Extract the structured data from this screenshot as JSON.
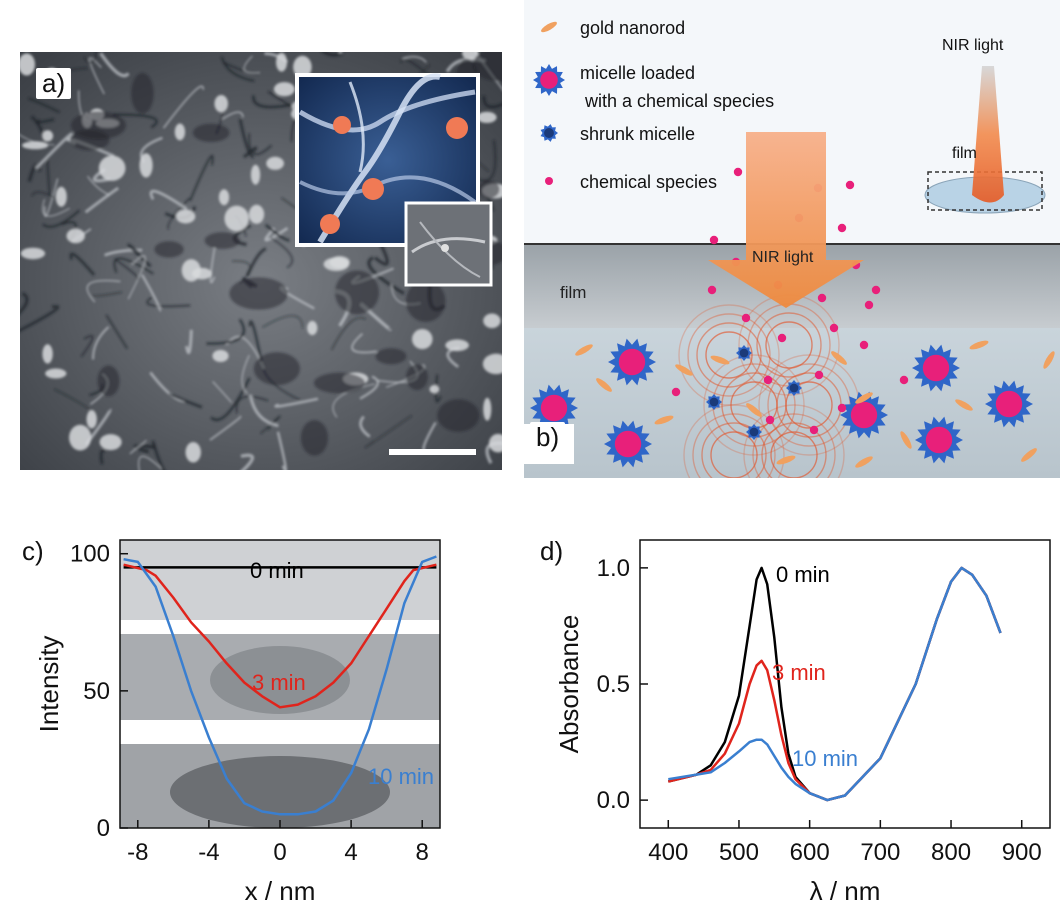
{
  "panel_a": {
    "label": "a)"
  },
  "panel_b": {
    "label": "b)",
    "legend": [
      {
        "key": "rod",
        "text": "gold nanorod"
      },
      {
        "key": "micelle",
        "text": "micelle loaded\n with a chemical species"
      },
      {
        "key": "shrunk",
        "text": "shrunk micelle"
      },
      {
        "key": "species",
        "text": "chemical species"
      }
    ],
    "nir_arrow_label": "NIR light",
    "film_label": "film",
    "inset_nir_label": "NIR light",
    "inset_film_label": "film"
  },
  "colors": {
    "micelle_blue": "#2f66c8",
    "species_pink": "#e8207a",
    "nir_orange": "#f08a3c",
    "curve_black": "#000000",
    "curve_red": "#e0241c",
    "curve_blue": "#3a7fd0"
  },
  "chart_data": [
    {
      "panel": "c)",
      "type": "line",
      "xlabel": "x / nm",
      "ylabel": "Intensity",
      "xticks": [
        "-8",
        "-4",
        "0",
        "4",
        "8"
      ],
      "yticks": [
        "0",
        "50",
        "100"
      ],
      "xlim": [
        -9,
        9
      ],
      "ylim": [
        0,
        105
      ],
      "series": [
        {
          "name": "0 min",
          "color": "#000000",
          "x": [
            -8.8,
            -6,
            -3,
            0,
            3,
            6,
            8.8
          ],
          "y": [
            95,
            95,
            95,
            95,
            95,
            95,
            95
          ]
        },
        {
          "name": "3 min",
          "color": "#e0241c",
          "x": [
            -8.8,
            -7.5,
            -7,
            -6,
            -5,
            -4,
            -3,
            -2,
            -1,
            0,
            1,
            2,
            3,
            4,
            5,
            6,
            7,
            7.5,
            8.8
          ],
          "y": [
            96,
            94,
            92,
            84,
            75,
            68,
            60,
            53,
            48,
            44,
            45,
            48,
            53,
            60,
            70,
            80,
            90,
            94,
            96
          ]
        },
        {
          "name": "10 min",
          "color": "#3a7fd0",
          "x": [
            -8.8,
            -8,
            -7,
            -6,
            -5,
            -4,
            -3,
            -2,
            -1,
            0,
            1,
            2,
            3,
            4,
            5,
            6,
            7,
            8,
            8.8
          ],
          "y": [
            98,
            97,
            88,
            70,
            50,
            33,
            18,
            9,
            6,
            5,
            5,
            6,
            10,
            20,
            36,
            58,
            82,
            97,
            99
          ]
        }
      ],
      "annotations": [
        "0 min",
        "3 min",
        "10 min"
      ]
    },
    {
      "panel": "d)",
      "type": "line",
      "xlabel": "λ / nm",
      "ylabel": "Absorbance",
      "xticks": [
        "400",
        "500",
        "600",
        "700",
        "800",
        "900"
      ],
      "yticks": [
        "0.0",
        "0.5",
        "1.0"
      ],
      "xlim": [
        360,
        940
      ],
      "ylim": [
        -0.12,
        1.12
      ],
      "series": [
        {
          "name": "0 min",
          "color": "#000000",
          "x": [
            400,
            440,
            460,
            480,
            500,
            515,
            525,
            532,
            540,
            550,
            560,
            570,
            580,
            600,
            625,
            650,
            700,
            750,
            780,
            800,
            815,
            830,
            850,
            870
          ],
          "y": [
            0.08,
            0.11,
            0.15,
            0.25,
            0.45,
            0.75,
            0.95,
            1.0,
            0.93,
            0.7,
            0.4,
            0.2,
            0.1,
            0.03,
            0.0,
            0.02,
            0.18,
            0.5,
            0.78,
            0.94,
            1.0,
            0.97,
            0.88,
            0.72
          ]
        },
        {
          "name": "3 min",
          "color": "#e0241c",
          "x": [
            400,
            440,
            460,
            480,
            500,
            515,
            525,
            532,
            540,
            550,
            560,
            570,
            580,
            600,
            625,
            650,
            700,
            750,
            780,
            800,
            815,
            830,
            850,
            870
          ],
          "y": [
            0.08,
            0.11,
            0.13,
            0.2,
            0.33,
            0.5,
            0.58,
            0.6,
            0.56,
            0.43,
            0.28,
            0.16,
            0.09,
            0.03,
            0.0,
            0.02,
            0.18,
            0.5,
            0.78,
            0.94,
            1.0,
            0.97,
            0.88,
            0.72
          ]
        },
        {
          "name": "10 min",
          "color": "#3a7fd0",
          "x": [
            400,
            440,
            460,
            480,
            500,
            515,
            525,
            532,
            540,
            550,
            560,
            570,
            580,
            600,
            625,
            650,
            700,
            750,
            780,
            800,
            815,
            830,
            850,
            870
          ],
          "y": [
            0.09,
            0.11,
            0.12,
            0.16,
            0.21,
            0.25,
            0.26,
            0.26,
            0.24,
            0.19,
            0.14,
            0.1,
            0.07,
            0.03,
            0.0,
            0.02,
            0.18,
            0.5,
            0.78,
            0.94,
            1.0,
            0.97,
            0.88,
            0.72
          ]
        }
      ],
      "annotations": [
        "0 min",
        "3 min",
        "10 min"
      ]
    }
  ],
  "panel_c": {
    "label": "c)"
  },
  "panel_d": {
    "label": "d)"
  }
}
